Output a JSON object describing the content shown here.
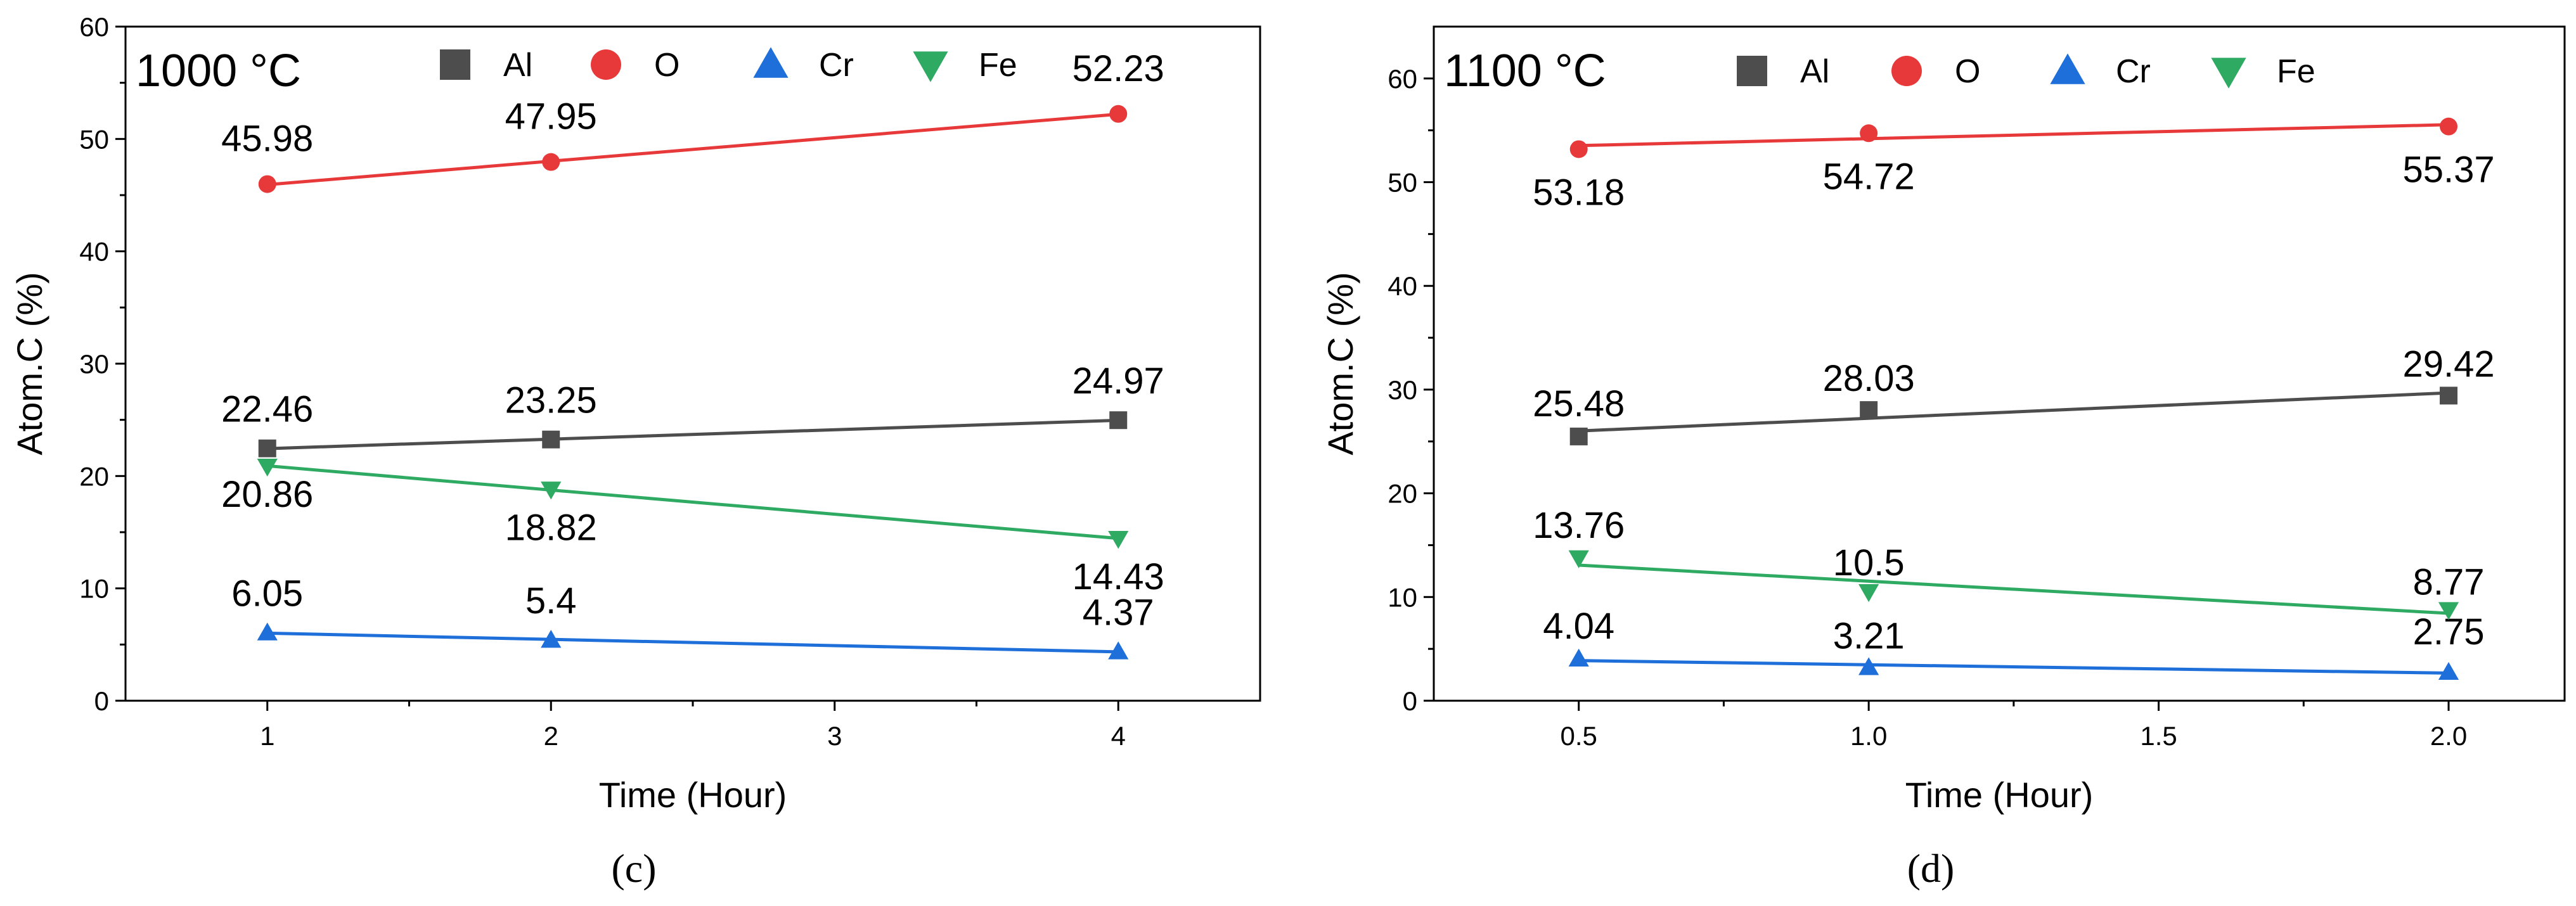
{
  "chart_data": [
    {
      "type": "line",
      "panel_label": "(c)",
      "title": "1000 °C",
      "xlabel": "Time (Hour)",
      "ylabel": "Atom.C (%)",
      "xlim": [
        0.5,
        4.5
      ],
      "ylim": [
        0,
        60
      ],
      "x_ticks": [
        1,
        2,
        3,
        4
      ],
      "x_tick_labels": [
        "1",
        "2",
        "3",
        "4"
      ],
      "y_ticks": [
        0,
        10,
        20,
        30,
        40,
        50,
        60
      ],
      "y_tick_labels": [
        "0",
        "10",
        "20",
        "30",
        "40",
        "50",
        "60"
      ],
      "grid": false,
      "legend_position": "top",
      "series": [
        {
          "name": "Al",
          "color": "#4d4d4d",
          "marker": "square",
          "x": [
            1,
            2,
            4
          ],
          "values": [
            22.46,
            23.25,
            24.97
          ],
          "labels": [
            "22.46",
            "23.25",
            "24.97"
          ]
        },
        {
          "name": "O",
          "color": "#e8393a",
          "marker": "circle",
          "x": [
            1,
            2,
            4
          ],
          "values": [
            45.98,
            47.95,
            52.23
          ],
          "labels": [
            "45.98",
            "47.95",
            "52.23"
          ]
        },
        {
          "name": "Cr",
          "color": "#1e6fd9",
          "marker": "triangle-up",
          "x": [
            1,
            2,
            4
          ],
          "values": [
            6.05,
            5.4,
            4.37
          ],
          "labels": [
            "6.05",
            "5.4",
            "4.37"
          ]
        },
        {
          "name": "Fe",
          "color": "#2faa63",
          "marker": "triangle-down",
          "x": [
            1,
            2,
            4
          ],
          "values": [
            20.86,
            18.82,
            14.43
          ],
          "labels": [
            "20.86",
            "18.82",
            "14.43"
          ]
        }
      ]
    },
    {
      "type": "line",
      "panel_label": "(d)",
      "title": "1100 °C",
      "xlabel": "Time (Hour)",
      "ylabel": "Atom.C (%)",
      "xlim": [
        0.25,
        2.2
      ],
      "ylim": [
        0,
        65
      ],
      "x_ticks": [
        0.5,
        1.0,
        1.5,
        2.0
      ],
      "x_tick_labels": [
        "0.5",
        "1.0",
        "1.5",
        "2.0"
      ],
      "y_ticks": [
        0,
        10,
        20,
        30,
        40,
        50,
        60
      ],
      "y_tick_labels": [
        "0",
        "10",
        "20",
        "30",
        "40",
        "50",
        "60"
      ],
      "grid": false,
      "legend_position": "top",
      "series": [
        {
          "name": "Al",
          "color": "#4d4d4d",
          "marker": "square",
          "x": [
            0.5,
            1.0,
            2.0
          ],
          "values": [
            25.48,
            28.03,
            29.42
          ],
          "labels": [
            "25.48",
            "28.03",
            "29.42"
          ]
        },
        {
          "name": "O",
          "color": "#e8393a",
          "marker": "circle",
          "x": [
            0.5,
            1.0,
            2.0
          ],
          "values": [
            53.18,
            54.72,
            55.37
          ],
          "labels": [
            "53.18",
            "54.72",
            "55.37"
          ]
        },
        {
          "name": "Cr",
          "color": "#1e6fd9",
          "marker": "triangle-up",
          "x": [
            0.5,
            1.0,
            2.0
          ],
          "values": [
            4.04,
            3.21,
            2.75
          ],
          "labels": [
            "4.04",
            "3.21",
            "2.75"
          ]
        },
        {
          "name": "Fe",
          "color": "#2faa63",
          "marker": "triangle-down",
          "x": [
            0.5,
            1.0,
            2.0
          ],
          "values": [
            13.76,
            10.5,
            8.77
          ],
          "labels": [
            "13.76",
            "10.5",
            "8.77"
          ]
        }
      ]
    }
  ]
}
